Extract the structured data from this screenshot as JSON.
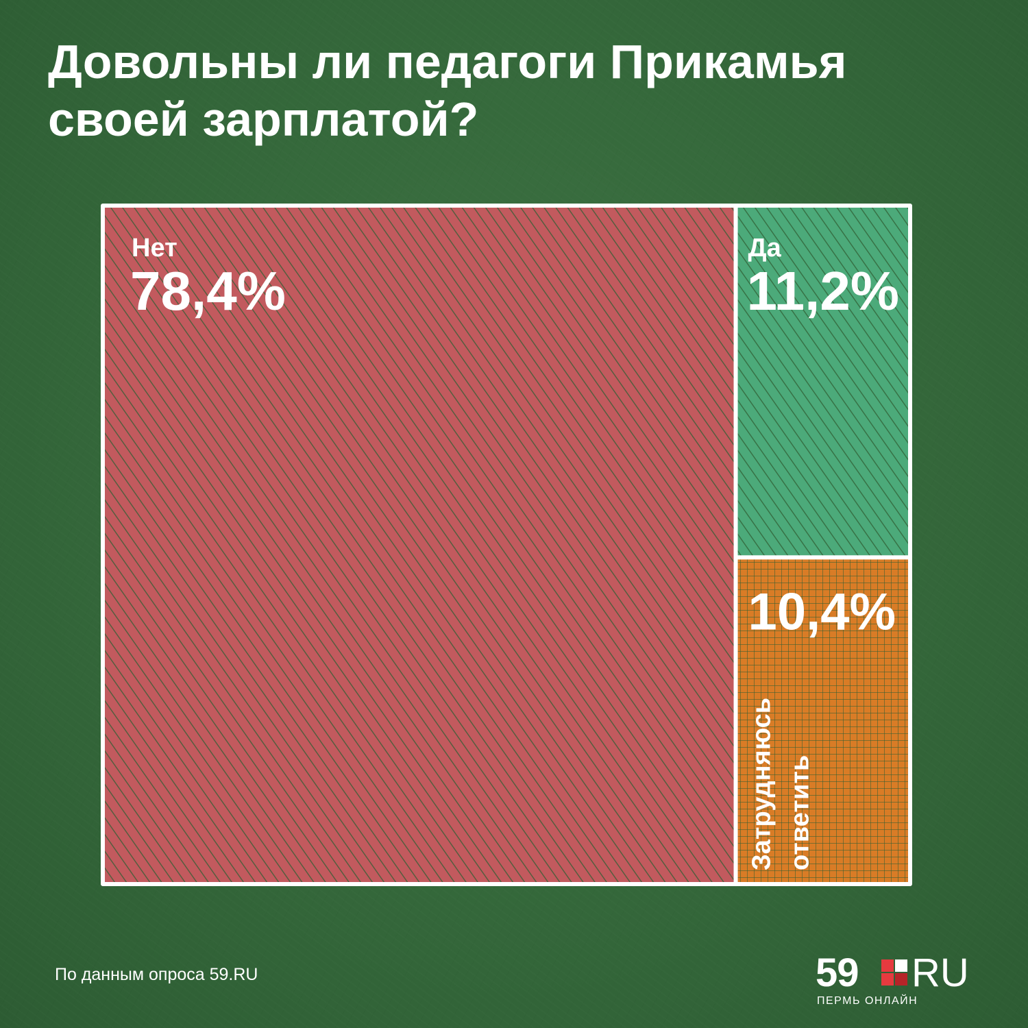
{
  "title_lines": [
    "Довольны ли педагоги Прикамья",
    "своей зарплатой?"
  ],
  "source": "По данным опроса 59.RU",
  "logo": {
    "number": "59",
    "suffix": "RU",
    "tagline": "ПЕРМЬ ОНЛАЙН",
    "colors": [
      "#e63a3f",
      "#ffffff",
      "#e63a3f",
      "#b62428"
    ]
  },
  "colors": {
    "background": "#366a3c",
    "border": "#ffffff"
  },
  "chart_data": {
    "type": "treemap",
    "title": "Довольны ли педагоги Прикамья своей зарплатой?",
    "unit": "%",
    "segments": [
      {
        "name": "Нет",
        "value": 78.4,
        "label": "78,4%",
        "color": "#c25a5e",
        "pattern": "diagonal-hatch"
      },
      {
        "name": "Да",
        "value": 11.2,
        "label": "11,2%",
        "color": "#4caa7a",
        "pattern": "diagonal-hatch"
      },
      {
        "name": "Затрудняюсь ответить",
        "name_lines": [
          "Затрудняюсь",
          "ответить"
        ],
        "value": 10.4,
        "label": "10,4%",
        "color": "#d97c26",
        "pattern": "crosshatch"
      }
    ]
  }
}
